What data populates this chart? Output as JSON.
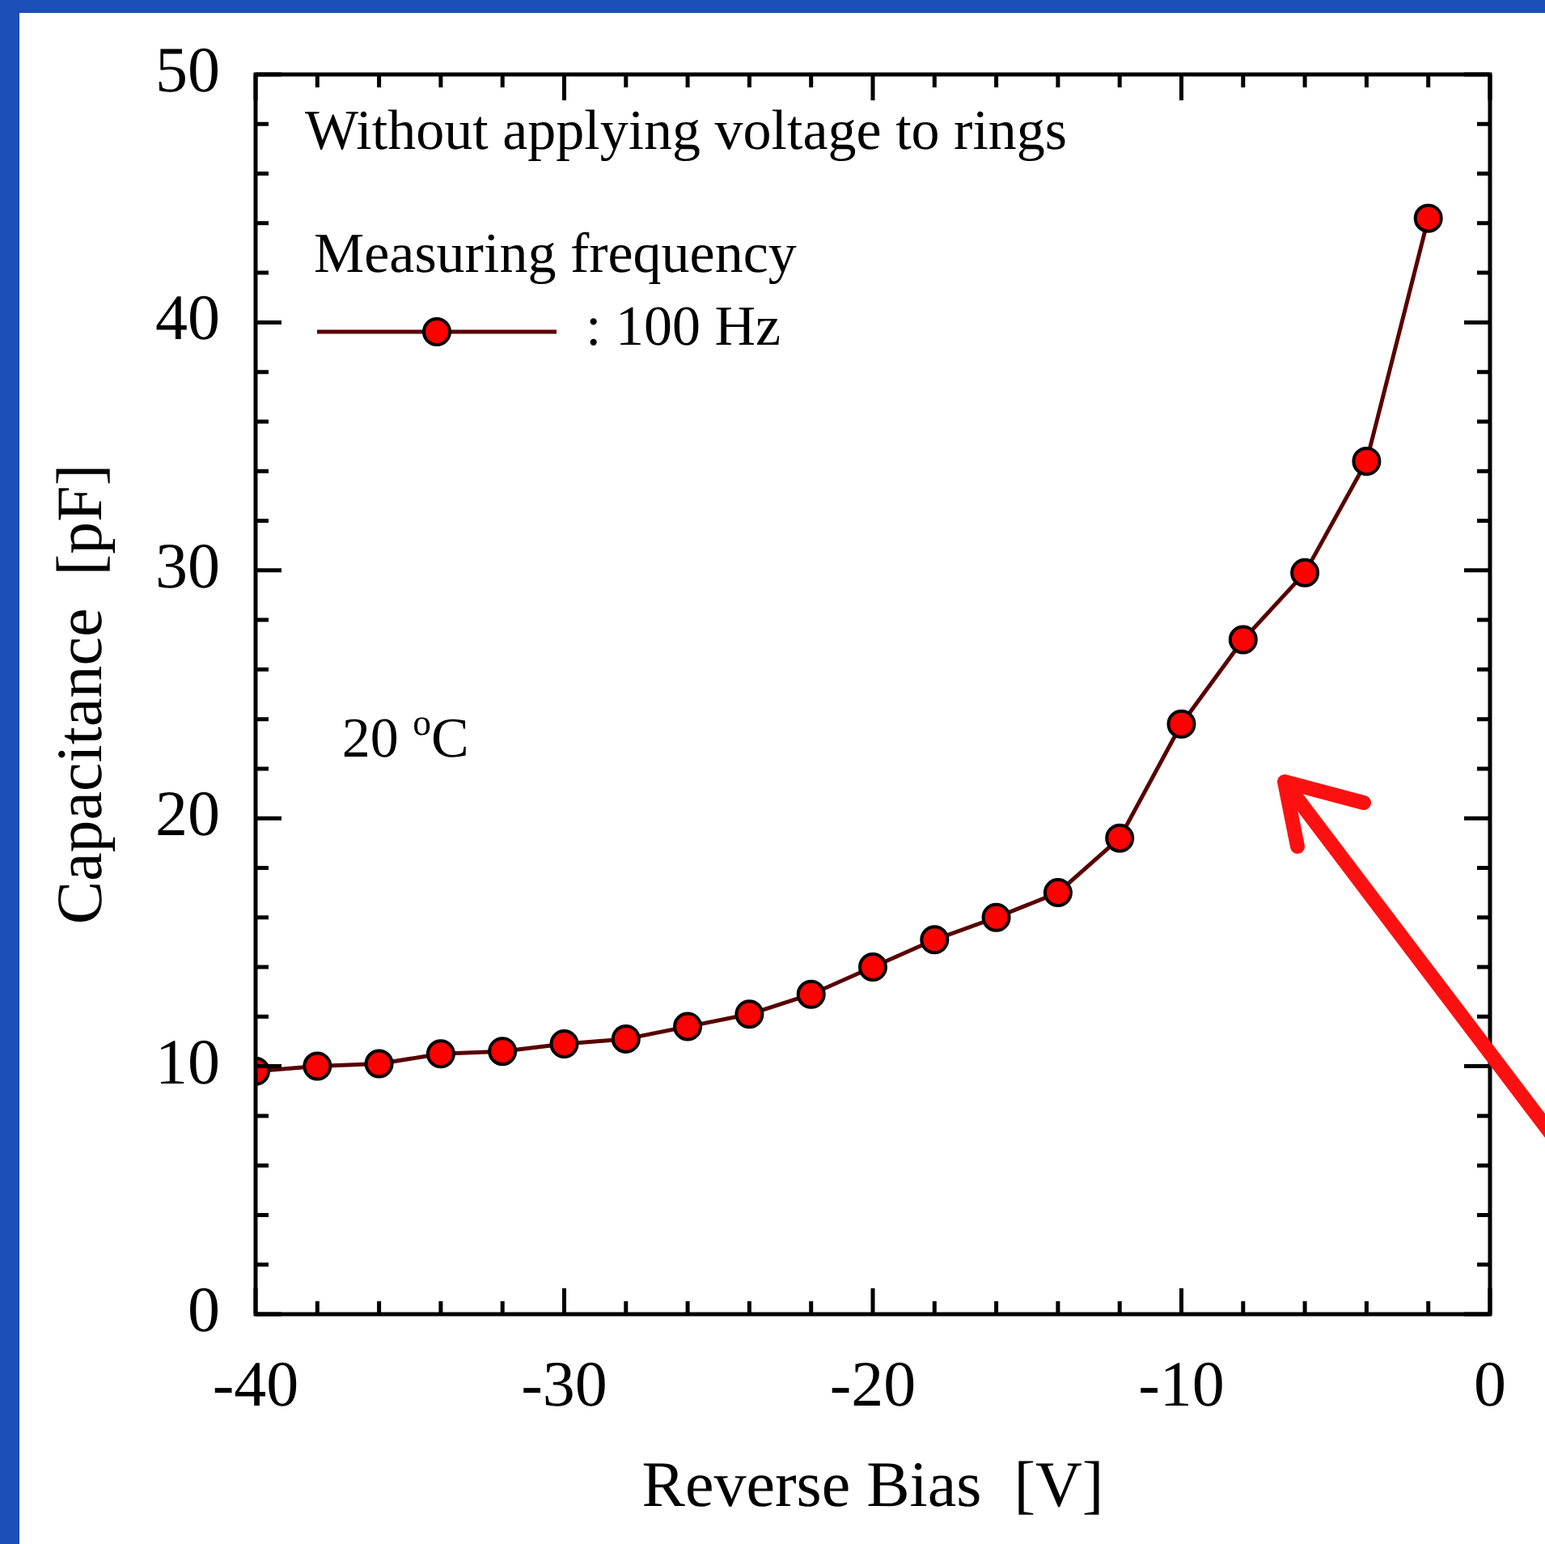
{
  "chart_data": {
    "type": "line",
    "xlabel": "Reverse Bias  [V]",
    "ylabel": "Capacitance  [pF]",
    "legend_title": "Measuring frequency",
    "legend": "top left",
    "marker": "circle",
    "line_style": "solid",
    "grid": false,
    "annotations": [
      "Without applying voltage to rings",
      "20 $^{o}$C"
    ],
    "x": [
      -40,
      -38,
      -36,
      -34,
      -32,
      -30,
      -28,
      -26,
      -24,
      -22,
      -20,
      -18,
      -16,
      -14,
      -12,
      -10,
      -8,
      -6,
      -4,
      -2
    ],
    "series": [
      {
        "name": ": 100 Hz",
        "color": "#ff0000",
        "values": [
          9.8,
          10.0,
          10.1,
          10.5,
          10.6,
          10.9,
          11.1,
          11.6,
          12.1,
          12.9,
          14.0,
          15.1,
          16.0,
          17.0,
          19.2,
          23.8,
          27.2,
          29.9,
          34.4,
          44.2
        ]
      }
    ],
    "xlim": [
      -40,
      0
    ],
    "ylim": [
      0,
      50
    ],
    "xticks": [
      -40,
      {
        "value": -38,
        "label": null
      },
      {
        "value": -36,
        "label": null
      },
      {
        "value": -34,
        "label": null
      },
      {
        "value": -32,
        "label": null
      },
      -30,
      {
        "value": -28,
        "label": null
      },
      {
        "value": -26,
        "label": null
      },
      {
        "value": -24,
        "label": null
      },
      {
        "value": -22,
        "label": null
      },
      -20,
      {
        "value": -18,
        "label": null
      },
      {
        "value": -16,
        "label": null
      },
      {
        "value": -14,
        "label": null
      },
      {
        "value": -12,
        "label": null
      },
      -10,
      {
        "value": -8,
        "label": null
      },
      {
        "value": -6,
        "label": null
      },
      {
        "value": -4,
        "label": null
      },
      {
        "value": -2,
        "label": null
      },
      0
    ],
    "yticks": [
      0,
      {
        "value": 2,
        "label": null
      },
      {
        "value": 4,
        "label": null
      },
      {
        "value": 6,
        "label": null
      },
      {
        "value": 8,
        "label": null
      },
      10,
      {
        "value": 12,
        "label": null
      },
      {
        "value": 14,
        "label": null
      },
      {
        "value": 16,
        "label": null
      },
      {
        "value": 18,
        "label": null
      },
      20,
      {
        "value": 22,
        "label": null
      },
      {
        "value": 24,
        "label": null
      },
      {
        "value": 26,
        "label": null
      },
      {
        "value": 28,
        "label": null
      },
      30,
      {
        "value": 32,
        "label": null
      },
      {
        "value": 34,
        "label": null
      },
      {
        "value": 36,
        "label": null
      },
      {
        "value": 38,
        "label": null
      },
      40,
      {
        "value": 42,
        "label": null
      },
      {
        "value": 44,
        "label": null
      },
      {
        "value": 46,
        "label": null
      },
      {
        "value": 48,
        "label": null
      },
      50
    ]
  }
}
